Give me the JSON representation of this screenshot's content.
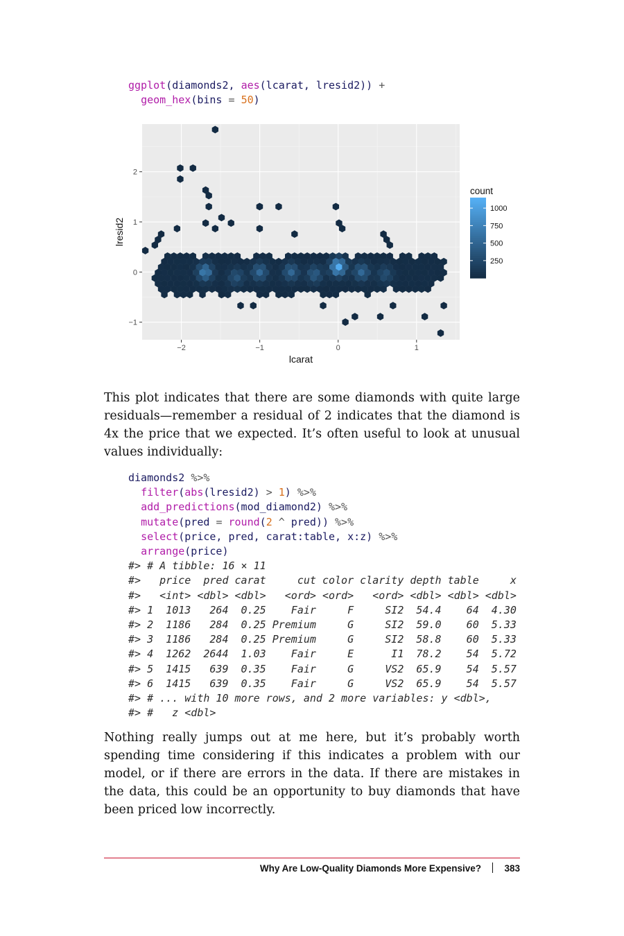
{
  "code_block_1": {
    "lines": [
      [
        {
          "t": "ggplot",
          "c": "fn"
        },
        {
          "t": "(diamonds2, ",
          "c": ""
        },
        {
          "t": "aes",
          "c": "fn"
        },
        {
          "t": "(lcarat, lresid2)) ",
          "c": ""
        },
        {
          "t": "+",
          "c": "op"
        }
      ],
      [
        {
          "t": "  ",
          "c": ""
        },
        {
          "t": "geom_hex",
          "c": "fn"
        },
        {
          "t": "(bins ",
          "c": ""
        },
        {
          "t": "=",
          "c": "op"
        },
        {
          "t": " ",
          "c": ""
        },
        {
          "t": "50",
          "c": "num"
        },
        {
          "t": ")",
          "c": ""
        }
      ]
    ]
  },
  "chart_data": {
    "type": "heatmap",
    "geom": "hex",
    "xlabel": "lcarat",
    "ylabel": "lresid2",
    "xlim": [
      -2.5,
      1.55
    ],
    "ylim": [
      -1.35,
      2.95
    ],
    "x_ticks": [
      -2,
      -1,
      0,
      1
    ],
    "x_tick_labels": [
      "−2",
      "−1",
      "0",
      "1"
    ],
    "y_ticks": [
      -1,
      0,
      1,
      2
    ],
    "y_tick_labels": [
      "−1",
      "0",
      "1",
      "2"
    ],
    "legend": {
      "title": "count",
      "position": "right",
      "breaks": [
        250,
        500,
        750,
        1000
      ],
      "labels": [
        "250",
        "500",
        "750",
        "1000"
      ],
      "range": [
        1,
        1150
      ],
      "low_color": "#132B43",
      "high_color": "#56B1F7"
    },
    "background": "#EBEBEB",
    "grid": true,
    "dense_region": {
      "x": [
        -2.35,
        1.35
      ],
      "y_center": [
        -0.08,
        0.0
      ],
      "y_halfwidth": [
        0.42,
        0.36
      ]
    },
    "hotspots": [
      {
        "x": -1.7,
        "y": 0.0,
        "count": 700
      },
      {
        "x": -1.3,
        "y": -0.1,
        "count": 350
      },
      {
        "x": -1.0,
        "y": 0.0,
        "count": 520
      },
      {
        "x": -0.6,
        "y": 0.0,
        "count": 500
      },
      {
        "x": -0.3,
        "y": -0.05,
        "count": 420
      },
      {
        "x": 0.0,
        "y": 0.1,
        "count": 1100
      },
      {
        "x": 0.3,
        "y": 0.0,
        "count": 520
      },
      {
        "x": 0.6,
        "y": -0.05,
        "count": 300
      }
    ],
    "outliers": [
      {
        "x": -1.55,
        "y": 2.8
      },
      {
        "x": -2.02,
        "y": 2.03
      },
      {
        "x": -2.02,
        "y": 1.9
      },
      {
        "x": -1.83,
        "y": 2.1
      },
      {
        "x": -1.72,
        "y": 1.62
      },
      {
        "x": -1.68,
        "y": 1.55
      },
      {
        "x": -1.63,
        "y": 1.3
      },
      {
        "x": -1.0,
        "y": 1.35
      },
      {
        "x": -1.0,
        "y": 1.27
      },
      {
        "x": -0.73,
        "y": 1.3
      },
      {
        "x": 0.0,
        "y": 1.3
      },
      {
        "x": -1.5,
        "y": 1.1
      },
      {
        "x": -1.35,
        "y": 0.98
      },
      {
        "x": -1.7,
        "y": 0.97
      },
      {
        "x": -1.55,
        "y": 0.85
      },
      {
        "x": -2.06,
        "y": 0.9
      },
      {
        "x": -1.02,
        "y": 0.9
      },
      {
        "x": 0.0,
        "y": 1.0
      },
      {
        "x": 0.05,
        "y": 0.88
      },
      {
        "x": -0.55,
        "y": 0.72
      },
      {
        "x": 0.6,
        "y": 0.72
      },
      {
        "x": 0.58,
        "y": 0.6
      },
      {
        "x": 0.63,
        "y": 0.52
      },
      {
        "x": -2.27,
        "y": 0.78
      },
      {
        "x": -2.45,
        "y": 0.4
      },
      {
        "x": -2.37,
        "y": 0.53
      },
      {
        "x": -2.28,
        "y": 0.62
      },
      {
        "x": 0.08,
        "y": -1.05
      },
      {
        "x": 0.22,
        "y": -0.85
      },
      {
        "x": 0.5,
        "y": -0.87
      },
      {
        "x": 1.3,
        "y": -1.18
      },
      {
        "x": 1.08,
        "y": -0.9
      },
      {
        "x": 1.35,
        "y": -0.7
      },
      {
        "x": -1.45,
        "y": -0.5
      },
      {
        "x": -1.25,
        "y": -0.65
      },
      {
        "x": -1.1,
        "y": -0.72
      },
      {
        "x": -0.2,
        "y": -0.7
      },
      {
        "x": 0.7,
        "y": -0.72
      }
    ]
  },
  "paragraph_1": "This plot indicates that there are some diamonds with quite large residuals—remember a residual of 2 indicates that the diamond is 4x the price that we expected. It’s often useful to look at unusual values individually:",
  "code_block_2": {
    "lines": [
      [
        {
          "t": "diamonds2 ",
          "c": ""
        },
        {
          "t": "%>%",
          "c": "op"
        }
      ],
      [
        {
          "t": "  ",
          "c": ""
        },
        {
          "t": "filter",
          "c": "fn"
        },
        {
          "t": "(",
          "c": ""
        },
        {
          "t": "abs",
          "c": "fn"
        },
        {
          "t": "(lresid2) ",
          "c": ""
        },
        {
          "t": ">",
          "c": "op"
        },
        {
          "t": " ",
          "c": ""
        },
        {
          "t": "1",
          "c": "num"
        },
        {
          "t": ") ",
          "c": ""
        },
        {
          "t": "%>%",
          "c": "op"
        }
      ],
      [
        {
          "t": "  ",
          "c": ""
        },
        {
          "t": "add_predictions",
          "c": "fn"
        },
        {
          "t": "(mod_diamond2) ",
          "c": ""
        },
        {
          "t": "%>%",
          "c": "op"
        }
      ],
      [
        {
          "t": "  ",
          "c": ""
        },
        {
          "t": "mutate",
          "c": "fn"
        },
        {
          "t": "(pred ",
          "c": ""
        },
        {
          "t": "=",
          "c": "op"
        },
        {
          "t": " ",
          "c": ""
        },
        {
          "t": "round",
          "c": "fn"
        },
        {
          "t": "(",
          "c": ""
        },
        {
          "t": "2",
          "c": "num"
        },
        {
          "t": " ",
          "c": ""
        },
        {
          "t": "^",
          "c": "op"
        },
        {
          "t": " pred)) ",
          "c": ""
        },
        {
          "t": "%>%",
          "c": "op"
        }
      ],
      [
        {
          "t": "  ",
          "c": ""
        },
        {
          "t": "select",
          "c": "fn"
        },
        {
          "t": "(price, pred, carat:table, x:z) ",
          "c": ""
        },
        {
          "t": "%>%",
          "c": "op"
        }
      ],
      [
        {
          "t": "  ",
          "c": ""
        },
        {
          "t": "arrange",
          "c": "fn"
        },
        {
          "t": "(price)",
          "c": ""
        }
      ]
    ],
    "output": [
      "#> # A tibble: 16 × 11",
      "#>   price  pred carat     cut color clarity depth table     x",
      "#>   <int> <dbl> <dbl>   <ord> <ord>   <ord> <dbl> <dbl> <dbl>",
      "#> 1  1013   264  0.25    Fair     F     SI2  54.4    64  4.30",
      "#> 2  1186   284  0.25 Premium     G     SI2  59.0    60  5.33",
      "#> 3  1186   284  0.25 Premium     G     SI2  58.8    60  5.33",
      "#> 4  1262  2644  1.03    Fair     E      I1  78.2    54  5.72",
      "#> 5  1415   639  0.35    Fair     G     VS2  65.9    54  5.57",
      "#> 6  1415   639  0.35    Fair     G     VS2  65.9    54  5.57",
      "#> # ... with 10 more rows, and 2 more variables: y <dbl>,",
      "#> #   z <dbl>"
    ]
  },
  "paragraph_2": "Nothing really jumps out at me here, but it’s probably worth spending time considering if this indicates a problem with our model, or if there are errors in the data. If there are mistakes in the data, this could be an opportunity to buy diamonds that have been priced low incorrectly.",
  "footer": {
    "section_title": "Why Are Low-Quality Diamonds More Expensive?",
    "page_number": "383"
  }
}
